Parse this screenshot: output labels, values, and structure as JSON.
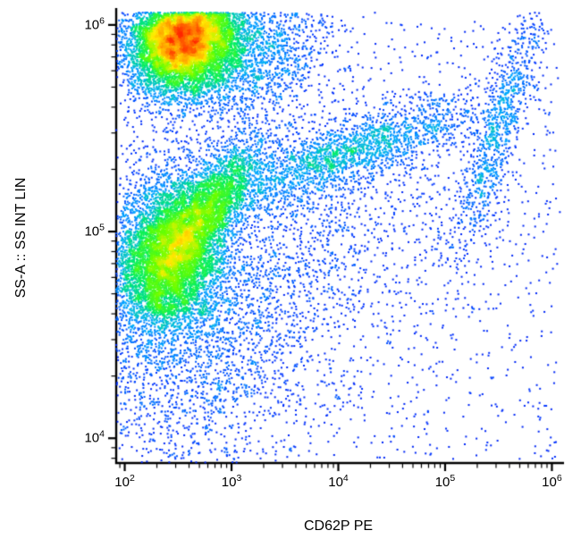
{
  "chart_data": {
    "type": "scatter",
    "subtype": "flow-cytometry-density-dot-plot",
    "title": "",
    "xlabel": "CD62P PE",
    "ylabel": "SS-A :: SS INT LIN",
    "x_scale": "log",
    "y_scale": "log",
    "grid": false,
    "legend": false,
    "x_ticks_exponents": [
      2,
      3,
      4,
      5,
      6
    ],
    "y_ticks_exponents": [
      4,
      5,
      6
    ],
    "xlim_log10": [
      1.92,
      6.08
    ],
    "ylim_log10": [
      3.88,
      6.06
    ],
    "background": "#ffffff",
    "axis_color": "#000000",
    "point_size": 2,
    "populations": [
      {
        "name": "upper-dense-cluster",
        "cx": 2.55,
        "cy": 5.93,
        "sx": 0.25,
        "sy": 0.12,
        "corr": 0.15,
        "n": 9000
      },
      {
        "name": "upper-cluster-tail",
        "cx": 3.05,
        "cy": 5.86,
        "sx": 0.42,
        "sy": 0.16,
        "corr": 0.25,
        "n": 2000
      },
      {
        "name": "mid-dense-cluster",
        "cx": 2.42,
        "cy": 4.88,
        "sx": 0.26,
        "sy": 0.19,
        "corr": 0.2,
        "n": 6500
      },
      {
        "name": "mid-cluster-arm",
        "cx": 2.8,
        "cy": 5.12,
        "sx": 0.26,
        "sy": 0.17,
        "corr": 0.75,
        "n": 2600
      },
      {
        "name": "diagonal-band",
        "cx": 4.1,
        "cy": 5.38,
        "sx": 0.65,
        "sy": 0.14,
        "corr": 0.8,
        "n": 2000
      },
      {
        "name": "right-edge-band",
        "cx": 5.5,
        "cy": 5.5,
        "sx": 0.22,
        "sy": 0.33,
        "corr": 0.88,
        "n": 950
      },
      {
        "name": "lower-left-background",
        "cx": 2.7,
        "cy": 4.5,
        "sx": 0.6,
        "sy": 0.42,
        "corr": 0.1,
        "n": 2400
      },
      {
        "name": "mid-background",
        "cx": 3.6,
        "cy": 5.0,
        "sx": 0.85,
        "sy": 0.35,
        "corr": 0.3,
        "n": 1300
      },
      {
        "name": "uniform-background",
        "uniform": true,
        "x0": 1.95,
        "x1": 6.05,
        "y0": 3.9,
        "y1": 6.02,
        "n": 1400
      }
    ],
    "colormap_stops": [
      {
        "pos": 0.0,
        "color": "#0000dd"
      },
      {
        "pos": 0.22,
        "color": "#0033ff"
      },
      {
        "pos": 0.38,
        "color": "#00aaff"
      },
      {
        "pos": 0.52,
        "color": "#00ee66"
      },
      {
        "pos": 0.66,
        "color": "#66ff00"
      },
      {
        "pos": 0.78,
        "color": "#ffee00"
      },
      {
        "pos": 0.9,
        "color": "#ff8800"
      },
      {
        "pos": 1.0,
        "color": "#ff2200"
      }
    ]
  }
}
